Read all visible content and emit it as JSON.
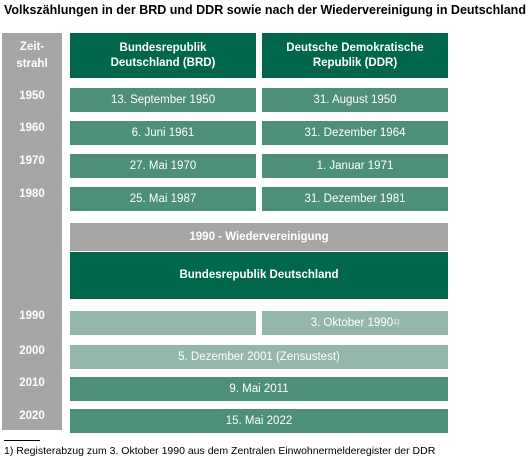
{
  "title": "Volkszählungen in der BRD und DDR sowie nach der Wiedervereinigung in Deutschland",
  "timeline": {
    "header_line1": "Zeit-",
    "header_line2": "strahl",
    "years": [
      "1950",
      "1960",
      "1970",
      "1980",
      "1990",
      "2000",
      "2010",
      "2020"
    ]
  },
  "columns": {
    "brd_line1": "Bundesrepublik",
    "brd_line2": "Deutschland (BRD)",
    "ddr_line1": "Deutsche Demokratische",
    "ddr_line2": "Republik (DDR)"
  },
  "rows": [
    {
      "brd": "13. September 1950",
      "ddr": "31. August 1950"
    },
    {
      "brd": "6. Juni 1961",
      "ddr": "31. Dezember 1964"
    },
    {
      "brd": "27. Mai 1970",
      "ddr": "1. Januar 1971"
    },
    {
      "brd": "25. Mai 1987",
      "ddr": "31. Dezember 1981"
    }
  ],
  "reunification": "1990 - Wiedervereinigung",
  "unified_header": "Bundesrepublik Deutschland",
  "census_1990": "3. Oktober 1990",
  "census_1990_footnote_mark": "1)",
  "census_2001": "5. Dezember 2001 (Zensustest)",
  "census_2011": "9. Mai 2011",
  "census_2022": "15. Mai 2022",
  "footnote": "1) Registerabzug zum 3. Oktober 1990 aus dem Zentralen Einwohnermelderegister der DDR",
  "colors": {
    "dark_green": "#00674d",
    "mid_green": "#4d8f79",
    "light_green": "#94b7aa",
    "grey": "#a6a6a6"
  }
}
